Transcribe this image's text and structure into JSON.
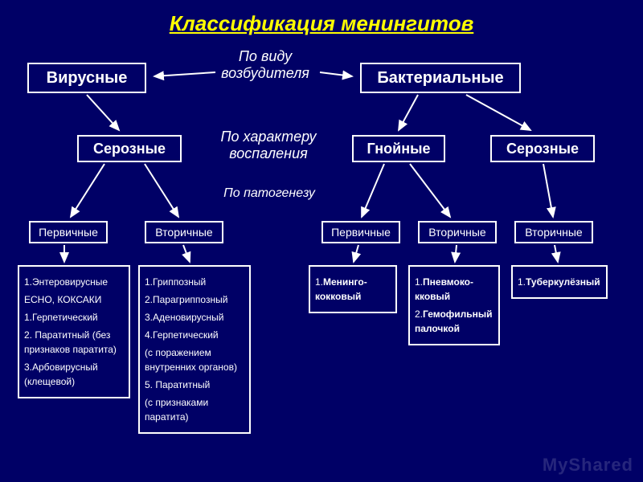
{
  "title": "Классификация менингитов",
  "labels": {
    "by_pathogen": "По виду возбудителя",
    "by_inflammation": "По характеру воспаления",
    "by_pathogenesis": "По патогенезу"
  },
  "nodes": {
    "viral": "Вирусные",
    "bacterial": "Бактериальные",
    "serous_l": "Серозные",
    "purulent": "Гнойные",
    "serous_r": "Серозные",
    "primary_l": "Первичные",
    "secondary_l": "Вторичные",
    "primary_r": "Первичные",
    "secondary_r": "Вторичные",
    "secondary_rr": "Вторичные"
  },
  "lists": {
    "viral_primary": [
      "1.Энтеровирусные",
      "ЕСНО, КОКСАКИ",
      "1.Герпетический",
      "2. Паратитный (без признаков паратита)",
      "3.Арбовирусный (клещевой)"
    ],
    "viral_secondary": [
      "1.Гриппозный",
      "2.Парагриппозный",
      "3.Аденовирусный",
      "4.Герпетический",
      "(с поражением внутренних органов)",
      "5. Паратитный",
      "(с признаками паратита)"
    ],
    "bact_primary": [
      "1.Менинго-кокковый"
    ],
    "bact_secondary": [
      "1.Пневмоко-кковый",
      "2.Гемофильный палочкой"
    ],
    "bact_serous_secondary": [
      "1.Туберкулёзный"
    ]
  },
  "colors": {
    "background": "#000066",
    "title": "#ffff00",
    "border": "#ffffff",
    "text": "#ffffff",
    "arrow": "#ffffff"
  },
  "layout": {
    "title_fontsize": 26,
    "node_fontsize_lg": 20,
    "node_fontsize_md": 18,
    "node_fontsize_sm": 14,
    "list_fontsize": 12,
    "label_fontsize": 18,
    "label_fontsize_sm": 16
  },
  "watermark": "MyShared"
}
